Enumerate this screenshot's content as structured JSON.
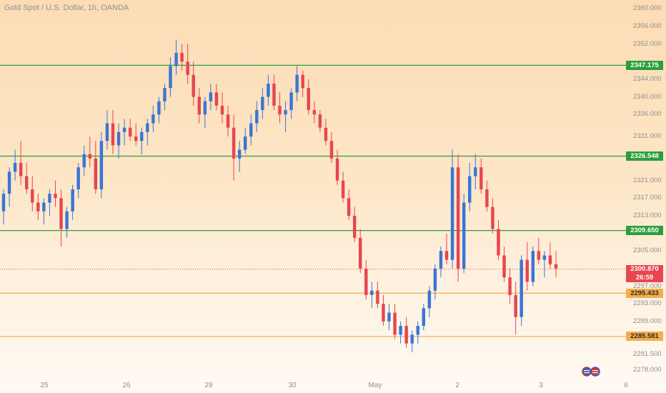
{
  "header": {
    "title": "Gold Spot / U.S. Dollar, 1h, OANDA"
  },
  "price_axis": {
    "ticks": [
      "2360.000",
      "2356.000",
      "2352.000",
      "2344.000",
      "2340.000",
      "2336.000",
      "2331.000",
      "2321.000",
      "2317.000",
      "2313.000",
      "2305.000",
      "2297.000",
      "2293.000",
      "2289.000",
      "2281.500",
      "2278.000"
    ],
    "tick_values": [
      2360,
      2356,
      2352,
      2344,
      2340,
      2336,
      2331,
      2321,
      2317,
      2313,
      2305,
      2297,
      2293,
      2289,
      2281.5,
      2278
    ]
  },
  "levels": [
    {
      "label": "2347.175",
      "value": 2347.175,
      "color": "#2c9e3d",
      "kind": "green"
    },
    {
      "label": "2326.548",
      "value": 2326.548,
      "color": "#2c9e3d",
      "kind": "green"
    },
    {
      "label": "2309.650",
      "value": 2309.65,
      "color": "#2c9e3d",
      "kind": "green"
    },
    {
      "label": "2295.433",
      "value": 2295.433,
      "color": "#f5ad4a",
      "kind": "orange"
    },
    {
      "label": "2285.581",
      "value": 2285.581,
      "color": "#f5ad4a",
      "kind": "orange"
    }
  ],
  "last_price": {
    "price": "2300.870",
    "countdown": "26:59",
    "value": 2300.87,
    "color": "#e8454f"
  },
  "time_axis": {
    "labels": [
      "25",
      "26",
      "29",
      "30",
      "May",
      "2",
      "3",
      "6"
    ]
  },
  "colors": {
    "up": "#3a74d6",
    "down": "#e8454f"
  },
  "icons": {
    "flag": "us-eu-flag-icon"
  },
  "chart_data": {
    "type": "candlestick",
    "title": "Gold Spot / U.S. Dollar, 1h, OANDA",
    "ylim": [
      2276,
      2362
    ],
    "x_ticks": [
      "25",
      "26",
      "29",
      "30",
      "May",
      "2",
      "3",
      "6"
    ],
    "candles": [
      [
        2314,
        2319,
        2311,
        2318
      ],
      [
        2318,
        2324,
        2315,
        2323
      ],
      [
        2323,
        2328,
        2321,
        2325
      ],
      [
        2325,
        2330,
        2320,
        2322
      ],
      [
        2322,
        2325,
        2318,
        2319
      ],
      [
        2319,
        2322,
        2314,
        2316
      ],
      [
        2316,
        2318,
        2312,
        2314
      ],
      [
        2314,
        2317,
        2311,
        2316
      ],
      [
        2316,
        2319,
        2313,
        2318
      ],
      [
        2318,
        2321,
        2315,
        2317
      ],
      [
        2317,
        2319,
        2306,
        2310
      ],
      [
        2310,
        2315,
        2308,
        2314
      ],
      [
        2314,
        2320,
        2312,
        2319
      ],
      [
        2319,
        2325,
        2317,
        2324
      ],
      [
        2324,
        2329,
        2322,
        2327
      ],
      [
        2327,
        2331,
        2324,
        2326
      ],
      [
        2326,
        2330,
        2318,
        2319
      ],
      [
        2319,
        2332,
        2317,
        2330
      ],
      [
        2330,
        2337,
        2328,
        2334
      ],
      [
        2334,
        2337,
        2327,
        2329
      ],
      [
        2329,
        2334,
        2326,
        2332
      ],
      [
        2332,
        2335,
        2329,
        2333
      ],
      [
        2333,
        2335,
        2330,
        2331
      ],
      [
        2331,
        2334,
        2329,
        2330
      ],
      [
        2330,
        2333,
        2327,
        2332
      ],
      [
        2332,
        2335,
        2329,
        2334
      ],
      [
        2334,
        2338,
        2332,
        2336
      ],
      [
        2336,
        2340,
        2334,
        2339
      ],
      [
        2339,
        2343,
        2337,
        2342
      ],
      [
        2342,
        2349,
        2340,
        2347
      ],
      [
        2347,
        2353,
        2345,
        2350
      ],
      [
        2350,
        2352,
        2346,
        2348
      ],
      [
        2348,
        2352,
        2343,
        2345
      ],
      [
        2345,
        2348,
        2338,
        2340
      ],
      [
        2340,
        2342,
        2334,
        2336
      ],
      [
        2336,
        2340,
        2333,
        2339
      ],
      [
        2339,
        2343,
        2337,
        2341
      ],
      [
        2341,
        2343,
        2337,
        2338
      ],
      [
        2338,
        2341,
        2334,
        2336
      ],
      [
        2336,
        2338,
        2331,
        2333
      ],
      [
        2333,
        2336,
        2321,
        2326
      ],
      [
        2326,
        2330,
        2323,
        2328
      ],
      [
        2328,
        2333,
        2327,
        2331
      ],
      [
        2331,
        2336,
        2329,
        2334
      ],
      [
        2334,
        2339,
        2332,
        2337
      ],
      [
        2337,
        2342,
        2335,
        2340
      ],
      [
        2340,
        2345,
        2338,
        2343
      ],
      [
        2343,
        2345,
        2337,
        2338
      ],
      [
        2338,
        2341,
        2334,
        2336
      ],
      [
        2336,
        2339,
        2332,
        2337
      ],
      [
        2337,
        2342,
        2335,
        2341
      ],
      [
        2341,
        2347,
        2339,
        2345
      ],
      [
        2345,
        2346,
        2340,
        2342
      ],
      [
        2342,
        2344,
        2336,
        2337
      ],
      [
        2337,
        2339,
        2334,
        2336
      ],
      [
        2336,
        2337,
        2332,
        2333
      ],
      [
        2333,
        2335,
        2329,
        2330
      ],
      [
        2330,
        2332,
        2325,
        2326
      ],
      [
        2326,
        2328,
        2320,
        2321
      ],
      [
        2321,
        2323,
        2316,
        2317
      ],
      [
        2317,
        2319,
        2312,
        2313
      ],
      [
        2313,
        2315,
        2307,
        2308
      ],
      [
        2308,
        2310,
        2300,
        2301
      ],
      [
        2301,
        2303,
        2294,
        2295
      ],
      [
        2295,
        2298,
        2292,
        2296
      ],
      [
        2296,
        2298,
        2292,
        2293
      ],
      [
        2293,
        2295,
        2288,
        2289
      ],
      [
        2289,
        2293,
        2287,
        2291
      ],
      [
        2291,
        2293,
        2285,
        2286
      ],
      [
        2286,
        2289,
        2284,
        2288
      ],
      [
        2288,
        2290,
        2283,
        2284
      ],
      [
        2284,
        2287,
        2282,
        2286
      ],
      [
        2286,
        2289,
        2284,
        2288
      ],
      [
        2288,
        2293,
        2287,
        2292
      ],
      [
        2292,
        2297,
        2290,
        2296
      ],
      [
        2296,
        2302,
        2294,
        2301
      ],
      [
        2301,
        2306,
        2299,
        2305
      ],
      [
        2305,
        2309,
        2302,
        2303
      ],
      [
        2303,
        2328,
        2301,
        2324
      ],
      [
        2324,
        2327,
        2298,
        2301
      ],
      [
        2301,
        2318,
        2300,
        2316
      ],
      [
        2316,
        2325,
        2314,
        2322
      ],
      [
        2322,
        2327,
        2319,
        2324
      ],
      [
        2324,
        2326,
        2318,
        2319
      ],
      [
        2319,
        2321,
        2314,
        2315
      ],
      [
        2315,
        2317,
        2309,
        2310
      ],
      [
        2310,
        2312,
        2303,
        2304
      ],
      [
        2304,
        2306,
        2298,
        2299
      ],
      [
        2299,
        2301,
        2293,
        2295
      ],
      [
        2295,
        2298,
        2286,
        2290
      ],
      [
        2290,
        2304,
        2288,
        2303
      ],
      [
        2303,
        2307,
        2296,
        2298
      ],
      [
        2298,
        2306,
        2297,
        2305
      ],
      [
        2305,
        2308,
        2302,
        2303
      ],
      [
        2303,
        2305,
        2299,
        2304
      ],
      [
        2304,
        2307,
        2301,
        2302
      ],
      [
        2302,
        2305,
        2299,
        2301
      ]
    ]
  }
}
